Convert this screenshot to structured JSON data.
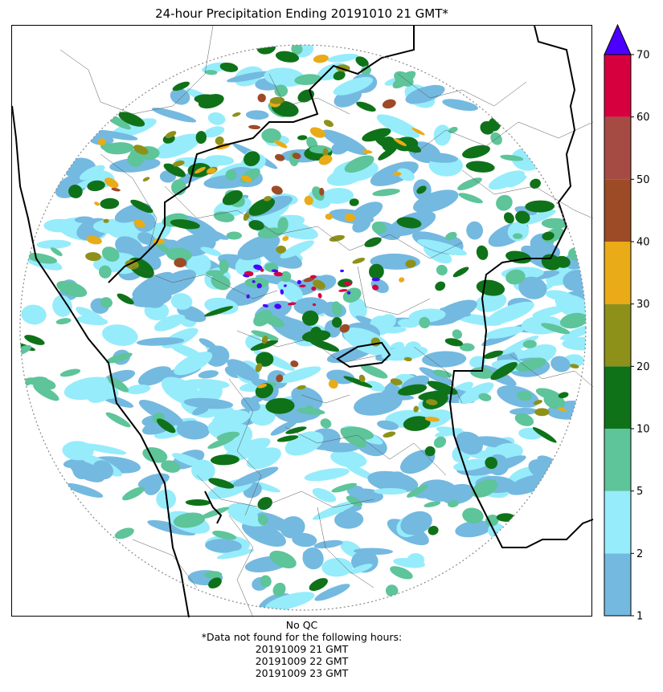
{
  "title": "24-hour Precipitation Ending 20191010 21 GMT*",
  "footer": {
    "qc": "No QC",
    "missing_note": "*Data not found for the following hours:",
    "missing_hours": [
      "20191009 21 GMT",
      "20191009 22 GMT",
      "20191009 23 GMT"
    ]
  },
  "chart_data": {
    "type": "heatmap",
    "title": "24-hour Precipitation Ending 20191010 21 GMT*",
    "colorbar": {
      "levels": [
        1,
        2,
        5,
        10,
        20,
        30,
        40,
        50,
        60,
        70
      ],
      "tick_labels": [
        "1",
        "2",
        "5",
        "10",
        "20",
        "30",
        "40",
        "50",
        "60",
        "70"
      ],
      "colors": [
        "#74b9e0",
        "#96ecfb",
        "#5ec49a",
        "#0f7219",
        "#8e9119",
        "#e9ab18",
        "#9d4b26",
        "#a64b44",
        "#d7003f"
      ],
      "extend_max_color": "#4b00ff",
      "position": "right"
    },
    "radar_range_ring": "dotted",
    "qc": "No QC"
  }
}
